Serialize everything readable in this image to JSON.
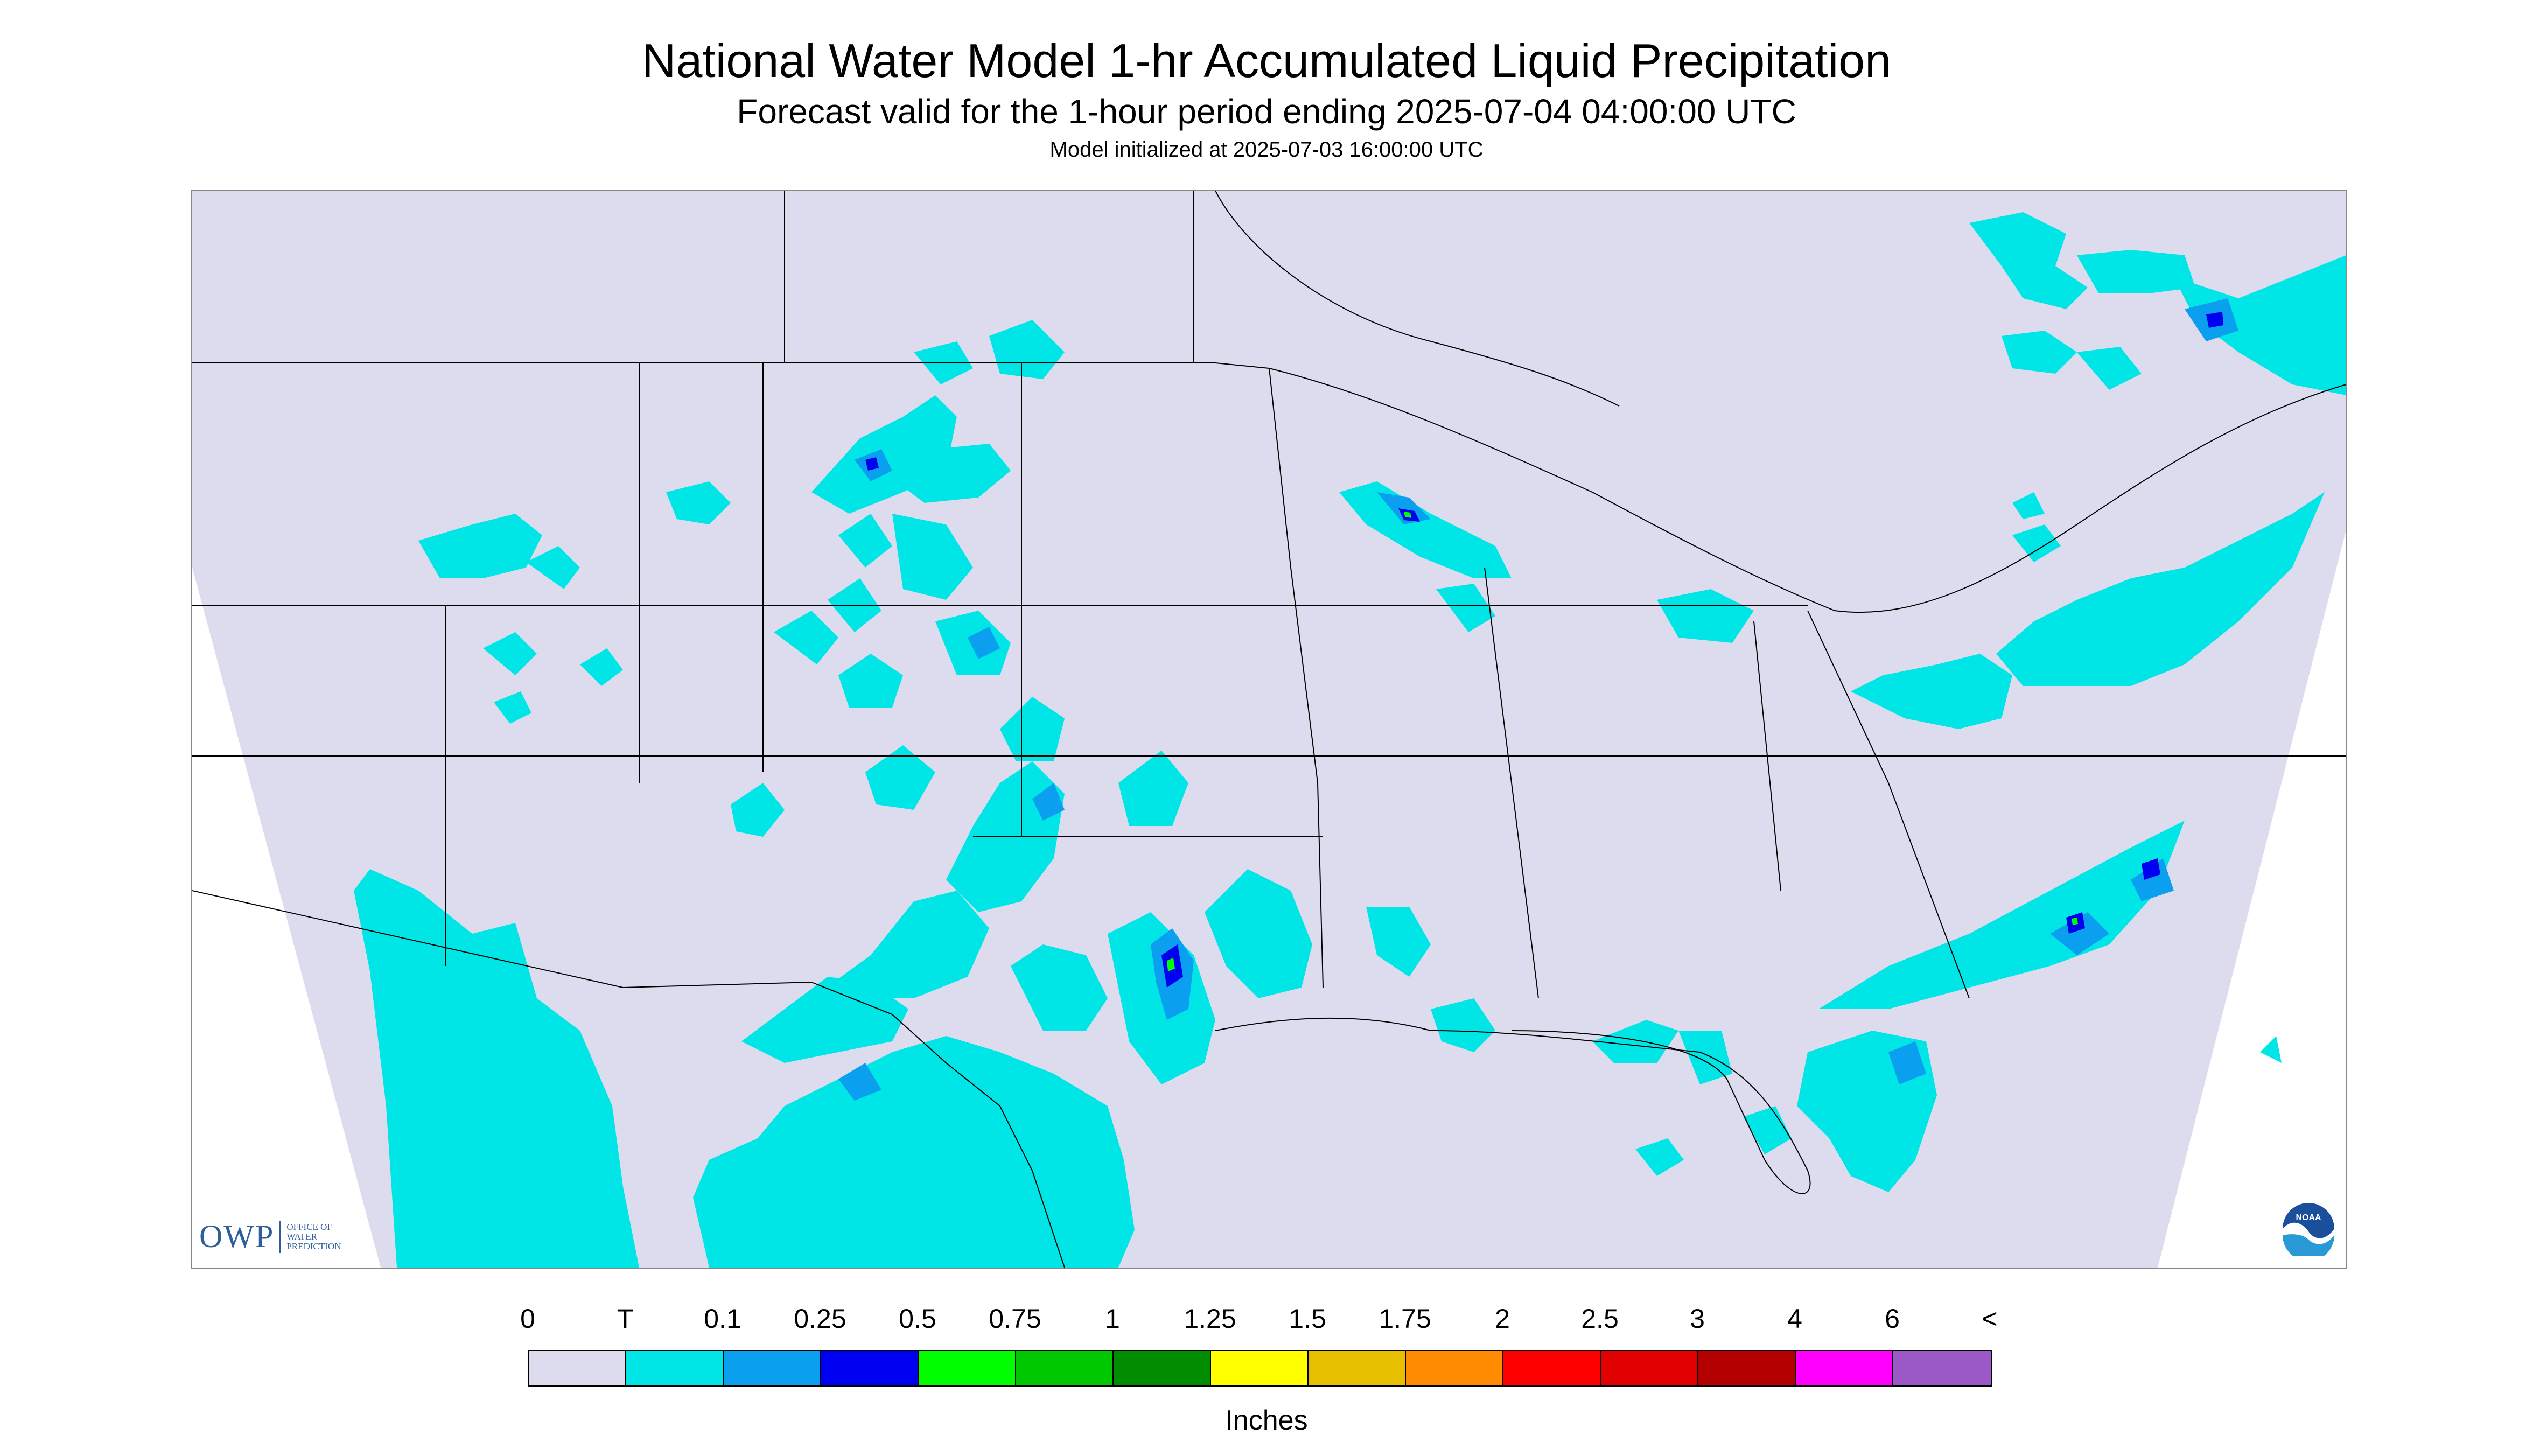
{
  "header": {
    "title": "National Water Model 1-hr Accumulated Liquid Precipitation",
    "subtitle": "Forecast valid for the 1-hour period ending 2025-07-04 04:00:00 UTC",
    "init": "Model initialized at 2025-07-03 16:00:00 UTC"
  },
  "logos": {
    "owp_mark": "OWP",
    "owp_text": [
      "OFFICE OF",
      "WATER",
      "PREDICTION"
    ],
    "noaa": "NOAA"
  },
  "legend": {
    "labels": [
      "0",
      "T",
      "0.1",
      "0.25",
      "0.5",
      "0.75",
      "1",
      "1.25",
      "1.5",
      "1.75",
      "2",
      "2.5",
      "3",
      "4",
      "6",
      "<"
    ],
    "colors": [
      "#dcdcee",
      "#00e5e5",
      "#0aa0ef",
      "#0000f0",
      "#00fe00",
      "#00c800",
      "#008c00",
      "#ffff00",
      "#e6c000",
      "#ff8c00",
      "#ff0000",
      "#e00000",
      "#b40000",
      "#ff00ff",
      "#9b59c8"
    ],
    "units": "Inches"
  },
  "map_colors": {
    "background": "#dcdcee",
    "trace": "#00e5e5",
    "light": "#0aa0ef",
    "moderate": "#0000f0",
    "heavy": "#00fe00",
    "border": "#000000"
  }
}
